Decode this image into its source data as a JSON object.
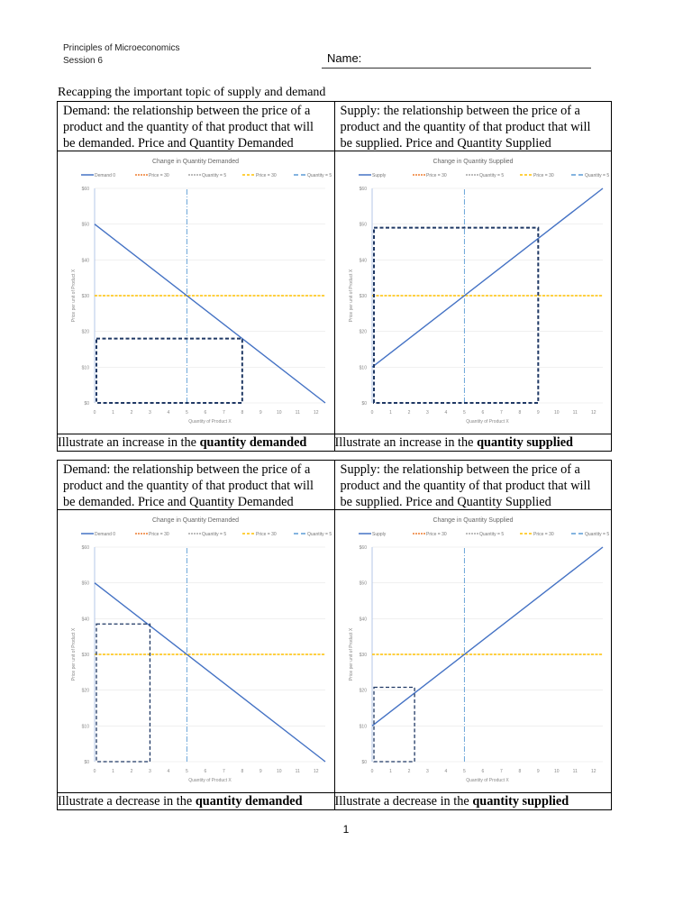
{
  "header": {
    "course": "Principles of Microeconomics",
    "session": "Session 6",
    "name_label": "Name:"
  },
  "intro": "Recapping the important topic of supply and demand",
  "definitions": {
    "demand": "Demand: the relationship between the price of a product and the quantity of that product that will be demanded. Price and Quantity Demanded",
    "supply": "Supply: the relationship between the price of a product and the quantity of that product that will be supplied. Price and Quantity Supplied"
  },
  "tasks": {
    "increase_demanded_pre": "Illustrate an increase in the ",
    "increase_demanded_bold": "quantity demanded",
    "increase_supplied_pre": "Illustrate an increase in the ",
    "increase_supplied_bold": "quantity supplied",
    "decrease_demanded_pre": "Illustrate a decrease in the ",
    "decrease_demanded_bold": "quantity demanded",
    "decrease_supplied_pre": "Illustrate a decrease in the ",
    "decrease_supplied_bold": "quantity supplied"
  },
  "page_number": "1",
  "chart_data": [
    {
      "type": "line",
      "title": "Change in Quantity Demanded",
      "xlabel": "Quantity of Product X",
      "ylabel": "Price per unit of Product X",
      "legend": [
        "Demand 0",
        "Price = 30",
        "Quantity = 5",
        "Price = 30",
        "Quantity = 5"
      ],
      "xticks": [
        0,
        1,
        2,
        3,
        4,
        5,
        6,
        7,
        8,
        9,
        10,
        11,
        12
      ],
      "yticks": [
        "$0",
        "$10",
        "$20",
        "$30",
        "$40",
        "$50",
        "$60"
      ],
      "xlim": [
        0,
        12.5
      ],
      "ylim": [
        0,
        60
      ],
      "series": [
        {
          "name": "Demand 0",
          "x": [
            0,
            12.5
          ],
          "y": [
            50,
            0
          ]
        },
        {
          "name": "Price = 30",
          "x": [
            0,
            12.5
          ],
          "y": [
            30,
            30
          ]
        },
        {
          "name": "Quantity = 5",
          "x": [
            5,
            5
          ],
          "y": [
            0,
            60
          ]
        }
      ],
      "annotation_box": {
        "q": 8,
        "p": 18
      }
    },
    {
      "type": "line",
      "title": "Change in Quantity Supplied",
      "xlabel": "Quantity of Product X",
      "ylabel": "Price per unit of Product X",
      "legend": [
        "Supply",
        "Price = 30",
        "Quantity = 5",
        "Price = 30",
        "Quantity = 5"
      ],
      "xticks": [
        0,
        1,
        2,
        3,
        4,
        5,
        6,
        7,
        8,
        9,
        10,
        11,
        12
      ],
      "yticks": [
        "$0",
        "$10",
        "$20",
        "$30",
        "$40",
        "$50",
        "$60"
      ],
      "xlim": [
        0,
        12.5
      ],
      "ylim": [
        0,
        60
      ],
      "series": [
        {
          "name": "Supply",
          "x": [
            0,
            12.5
          ],
          "y": [
            10,
            60
          ]
        },
        {
          "name": "Price = 30",
          "x": [
            0,
            12.5
          ],
          "y": [
            30,
            30
          ]
        },
        {
          "name": "Quantity = 5",
          "x": [
            5,
            5
          ],
          "y": [
            0,
            60
          ]
        }
      ],
      "annotation_box": {
        "q": 9,
        "p": 49
      }
    },
    {
      "type": "line",
      "title": "Change in Quantity Demanded",
      "xlabel": "Quantity of Product X",
      "ylabel": "Price per unit of Product X",
      "legend": [
        "Demand 0",
        "Price = 30",
        "Quantity = 5",
        "Price = 30",
        "Quantity = 5"
      ],
      "xticks": [
        0,
        1,
        2,
        3,
        4,
        5,
        6,
        7,
        8,
        9,
        10,
        11,
        12
      ],
      "yticks": [
        "$0",
        "$10",
        "$20",
        "$30",
        "$40",
        "$50",
        "$60"
      ],
      "xlim": [
        0,
        12.5
      ],
      "ylim": [
        0,
        60
      ],
      "series": [
        {
          "name": "Demand 0",
          "x": [
            0,
            12.5
          ],
          "y": [
            50,
            0
          ]
        },
        {
          "name": "Price = 30",
          "x": [
            0,
            12.5
          ],
          "y": [
            30,
            30
          ]
        },
        {
          "name": "Quantity = 5",
          "x": [
            5,
            5
          ],
          "y": [
            0,
            60
          ]
        }
      ],
      "annotation_box": {
        "q": 3,
        "p": 38.5
      }
    },
    {
      "type": "line",
      "title": "Change in Quantity Supplied",
      "xlabel": "Quantity of Product X",
      "ylabel": "Price per unit of Product X",
      "legend": [
        "Supply",
        "Price = 30",
        "Quantity = 5",
        "Price = 30",
        "Quantity = 5"
      ],
      "xticks": [
        0,
        1,
        2,
        3,
        4,
        5,
        6,
        7,
        8,
        9,
        10,
        11,
        12
      ],
      "yticks": [
        "$0",
        "$10",
        "$20",
        "$30",
        "$40",
        "$50",
        "$60"
      ],
      "xlim": [
        0,
        12.5
      ],
      "ylim": [
        0,
        60
      ],
      "series": [
        {
          "name": "Supply",
          "x": [
            0,
            12.5
          ],
          "y": [
            10,
            60
          ]
        },
        {
          "name": "Price = 30",
          "x": [
            0,
            12.5
          ],
          "y": [
            30,
            30
          ]
        },
        {
          "name": "Quantity = 5",
          "x": [
            5,
            5
          ],
          "y": [
            0,
            60
          ]
        }
      ],
      "annotation_box": {
        "q": 2.3,
        "p": 20.8
      }
    }
  ],
  "colors": {
    "curve": "#4472c4",
    "price_line": "#ffc000",
    "qty_line": "#5b9bd5",
    "box": "#1f3864",
    "grid": "#e6e6e6",
    "axis_text": "#888888"
  }
}
